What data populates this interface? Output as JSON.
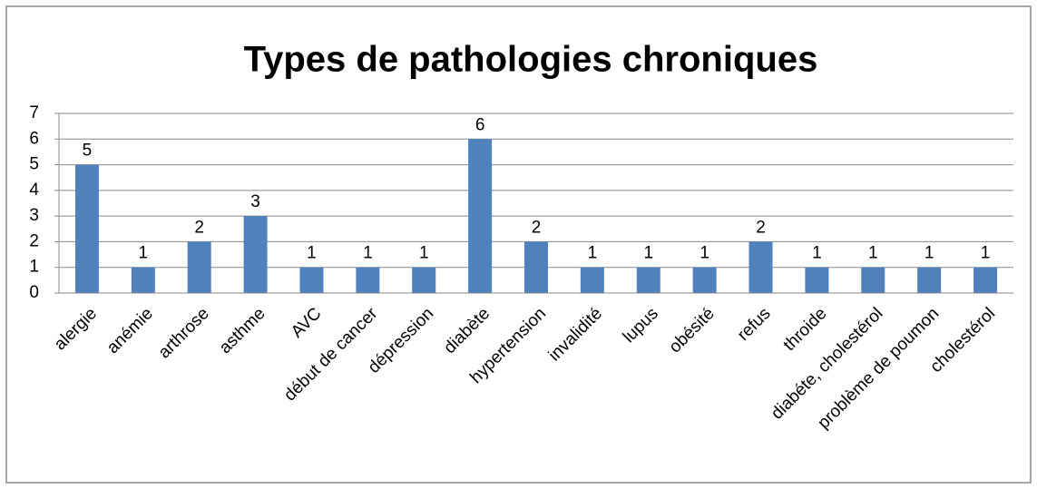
{
  "chart_data": {
    "type": "bar",
    "title": "Types de pathologies chroniques",
    "categories": [
      "alergie",
      "anémie",
      "arthrose",
      "asthme",
      "AVC",
      "début de cancer",
      "dépression",
      "diabète",
      "hypertension",
      "invalidité",
      "lupus",
      "obésité",
      "refus",
      "throide",
      "diabéte, cholestérol",
      "problème de poumon",
      "cholestérol"
    ],
    "values": [
      5,
      1,
      2,
      3,
      1,
      1,
      1,
      6,
      2,
      1,
      1,
      1,
      2,
      1,
      1,
      1,
      1
    ],
    "color": "#4f81bd",
    "ylim": [
      0,
      7
    ],
    "yticks": [
      0,
      1,
      2,
      3,
      4,
      5,
      6,
      7
    ],
    "grid": true
  }
}
